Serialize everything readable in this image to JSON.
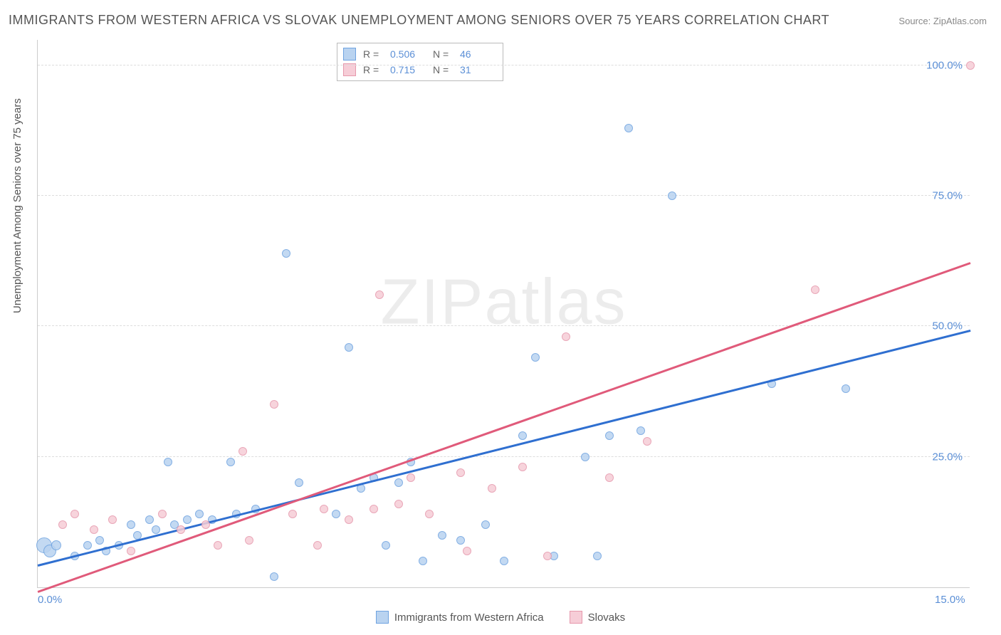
{
  "title": "IMMIGRANTS FROM WESTERN AFRICA VS SLOVAK UNEMPLOYMENT AMONG SENIORS OVER 75 YEARS CORRELATION CHART",
  "source_label": "Source:",
  "source_name": "ZipAtlas.com",
  "watermark": "ZIPatlas",
  "y_axis_title": "Unemployment Among Seniors over 75 years",
  "plot": {
    "xlim": [
      0,
      15
    ],
    "ylim": [
      0,
      105
    ],
    "yticks": [
      25,
      50,
      75,
      100
    ],
    "ytick_labels": [
      "25.0%",
      "50.0%",
      "75.0%",
      "100.0%"
    ],
    "xticks": [
      0,
      15
    ],
    "xtick_labels": [
      "0.0%",
      "15.0%"
    ],
    "background_color": "#ffffff",
    "grid_color": "#dddddd",
    "axis_color": "#cccccc",
    "tick_color": "#5b8fd6"
  },
  "series": [
    {
      "name": "Immigrants from Western Africa",
      "fill": "#b9d3f0",
      "stroke": "#6fa3e0",
      "line_color": "#2f6fd0",
      "r": 0.506,
      "n": 46,
      "trend": {
        "x1": 0,
        "y1": 4,
        "x2": 15,
        "y2": 49
      },
      "points": [
        {
          "x": 0.1,
          "y": 8,
          "r": 11
        },
        {
          "x": 0.2,
          "y": 7,
          "r": 9
        },
        {
          "x": 0.3,
          "y": 8,
          "r": 7
        },
        {
          "x": 0.6,
          "y": 6,
          "r": 6
        },
        {
          "x": 0.8,
          "y": 8,
          "r": 6
        },
        {
          "x": 1.0,
          "y": 9,
          "r": 6
        },
        {
          "x": 1.1,
          "y": 7,
          "r": 6
        },
        {
          "x": 1.3,
          "y": 8,
          "r": 6
        },
        {
          "x": 1.5,
          "y": 12,
          "r": 6
        },
        {
          "x": 1.6,
          "y": 10,
          "r": 6
        },
        {
          "x": 1.8,
          "y": 13,
          "r": 6
        },
        {
          "x": 1.9,
          "y": 11,
          "r": 6
        },
        {
          "x": 2.1,
          "y": 24,
          "r": 6
        },
        {
          "x": 2.2,
          "y": 12,
          "r": 6
        },
        {
          "x": 2.4,
          "y": 13,
          "r": 6
        },
        {
          "x": 2.6,
          "y": 14,
          "r": 6
        },
        {
          "x": 2.8,
          "y": 13,
          "r": 6
        },
        {
          "x": 3.1,
          "y": 24,
          "r": 6
        },
        {
          "x": 3.2,
          "y": 14,
          "r": 6
        },
        {
          "x": 3.5,
          "y": 15,
          "r": 6
        },
        {
          "x": 3.8,
          "y": 2,
          "r": 6
        },
        {
          "x": 4.0,
          "y": 64,
          "r": 6
        },
        {
          "x": 4.2,
          "y": 20,
          "r": 6
        },
        {
          "x": 4.8,
          "y": 14,
          "r": 6
        },
        {
          "x": 5.0,
          "y": 46,
          "r": 6
        },
        {
          "x": 5.2,
          "y": 19,
          "r": 6
        },
        {
          "x": 5.4,
          "y": 21,
          "r": 6
        },
        {
          "x": 5.6,
          "y": 8,
          "r": 6
        },
        {
          "x": 5.8,
          "y": 20,
          "r": 6
        },
        {
          "x": 6.0,
          "y": 24,
          "r": 6
        },
        {
          "x": 6.2,
          "y": 5,
          "r": 6
        },
        {
          "x": 6.5,
          "y": 10,
          "r": 6
        },
        {
          "x": 6.8,
          "y": 9,
          "r": 6
        },
        {
          "x": 7.2,
          "y": 12,
          "r": 6
        },
        {
          "x": 7.5,
          "y": 5,
          "r": 6
        },
        {
          "x": 7.8,
          "y": 29,
          "r": 6
        },
        {
          "x": 8.0,
          "y": 44,
          "r": 6
        },
        {
          "x": 8.3,
          "y": 6,
          "r": 6
        },
        {
          "x": 8.8,
          "y": 25,
          "r": 6
        },
        {
          "x": 9.0,
          "y": 6,
          "r": 6
        },
        {
          "x": 9.2,
          "y": 29,
          "r": 6
        },
        {
          "x": 9.5,
          "y": 88,
          "r": 6
        },
        {
          "x": 9.7,
          "y": 30,
          "r": 6
        },
        {
          "x": 10.2,
          "y": 75,
          "r": 6
        },
        {
          "x": 11.8,
          "y": 39,
          "r": 6
        },
        {
          "x": 13.0,
          "y": 38,
          "r": 6
        }
      ]
    },
    {
      "name": "Slovaks",
      "fill": "#f6cdd7",
      "stroke": "#e698ac",
      "line_color": "#e05a7a",
      "r": 0.715,
      "n": 31,
      "trend": {
        "x1": 0,
        "y1": -1,
        "x2": 15,
        "y2": 62
      },
      "points": [
        {
          "x": 0.4,
          "y": 12,
          "r": 6
        },
        {
          "x": 0.6,
          "y": 14,
          "r": 6
        },
        {
          "x": 0.9,
          "y": 11,
          "r": 6
        },
        {
          "x": 1.2,
          "y": 13,
          "r": 6
        },
        {
          "x": 1.5,
          "y": 7,
          "r": 6
        },
        {
          "x": 2.0,
          "y": 14,
          "r": 6
        },
        {
          "x": 2.3,
          "y": 11,
          "r": 6
        },
        {
          "x": 2.7,
          "y": 12,
          "r": 6
        },
        {
          "x": 2.9,
          "y": 8,
          "r": 6
        },
        {
          "x": 3.3,
          "y": 26,
          "r": 6
        },
        {
          "x": 3.4,
          "y": 9,
          "r": 6
        },
        {
          "x": 3.8,
          "y": 35,
          "r": 6
        },
        {
          "x": 4.1,
          "y": 14,
          "r": 6
        },
        {
          "x": 4.5,
          "y": 8,
          "r": 6
        },
        {
          "x": 4.6,
          "y": 15,
          "r": 6
        },
        {
          "x": 5.0,
          "y": 13,
          "r": 6
        },
        {
          "x": 5.4,
          "y": 15,
          "r": 6
        },
        {
          "x": 5.5,
          "y": 56,
          "r": 6
        },
        {
          "x": 5.8,
          "y": 16,
          "r": 6
        },
        {
          "x": 6.0,
          "y": 21,
          "r": 6
        },
        {
          "x": 6.3,
          "y": 14,
          "r": 6
        },
        {
          "x": 6.8,
          "y": 22,
          "r": 6
        },
        {
          "x": 6.9,
          "y": 7,
          "r": 6
        },
        {
          "x": 7.3,
          "y": 19,
          "r": 6
        },
        {
          "x": 7.8,
          "y": 23,
          "r": 6
        },
        {
          "x": 8.2,
          "y": 6,
          "r": 6
        },
        {
          "x": 8.5,
          "y": 48,
          "r": 6
        },
        {
          "x": 9.2,
          "y": 21,
          "r": 6
        },
        {
          "x": 9.8,
          "y": 28,
          "r": 6
        },
        {
          "x": 12.5,
          "y": 57,
          "r": 6
        },
        {
          "x": 15.0,
          "y": 100,
          "r": 6
        }
      ]
    }
  ],
  "stats_legend": {
    "r_label": "R =",
    "n_label": "N ="
  },
  "bottom_legend_items": [
    "Immigrants from Western Africa",
    "Slovaks"
  ]
}
